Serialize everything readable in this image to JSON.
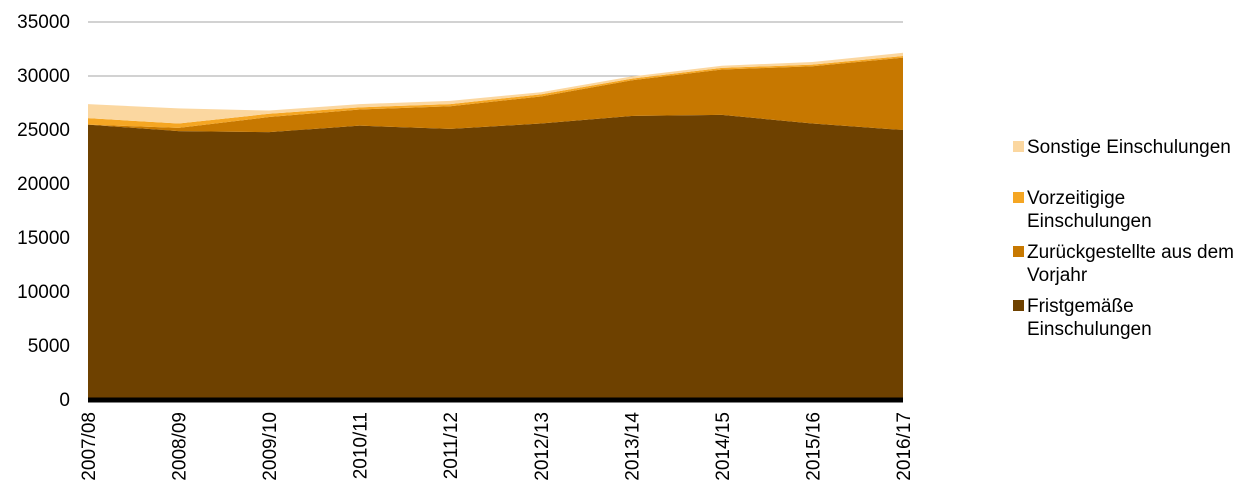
{
  "chart_data": {
    "type": "area",
    "stacked": true,
    "title": "",
    "xlabel": "",
    "ylabel": "",
    "ylim": [
      0,
      35000
    ],
    "yticks": [
      0,
      5000,
      10000,
      15000,
      20000,
      25000,
      30000,
      35000
    ],
    "grid": "horizontal",
    "legend_position": "right",
    "categories": [
      "2007/08",
      "2008/09",
      "2009/10",
      "2010/11",
      "2011/12",
      "2012/13",
      "2013/14",
      "2014/15",
      "2015/16",
      "2016/17"
    ],
    "series": [
      {
        "name": "Fristgemäße Einschulungen",
        "color": "#6e4100",
        "values": [
          25500,
          24900,
          24800,
          25400,
          25100,
          25600,
          26300,
          26400,
          25600,
          25000
        ]
      },
      {
        "name": "Zurückgestellte aus dem Vorjahr",
        "color": "#c77800",
        "values": [
          0,
          300,
          1400,
          1500,
          2100,
          2500,
          3300,
          4200,
          5300,
          6700
        ]
      },
      {
        "name": "Vorzeitigige Einschulungen",
        "color": "#f5a623",
        "values": [
          600,
          400,
          300,
          200,
          200,
          200,
          150,
          150,
          150,
          150
        ]
      },
      {
        "name": "Sonstige Einschulungen",
        "color": "#fbd7a0",
        "values": [
          1300,
          1400,
          300,
          300,
          300,
          200,
          200,
          200,
          250,
          300
        ]
      }
    ],
    "legend_order": [
      "Sonstige Einschulungen",
      "Vorzeitigige Einschulungen",
      "Zurückgestellte aus dem Vorjahr",
      "Fristgemäße Einschulungen"
    ],
    "legend_lines": {
      "Sonstige Einschulungen": [
        "Sonstige Einschulungen"
      ],
      "Vorzeitigige Einschulungen": [
        "Vorzeitigige",
        "Einschulungen"
      ],
      "Zurückgestellte aus dem Vorjahr": [
        "Zurückgestellte aus dem",
        "Vorjahr"
      ],
      "Fristgemäße Einschulungen": [
        "Fristgemäße",
        "Einschulungen"
      ]
    },
    "axis_line_color": "#000000",
    "grid_color": "#a6a6a6"
  }
}
